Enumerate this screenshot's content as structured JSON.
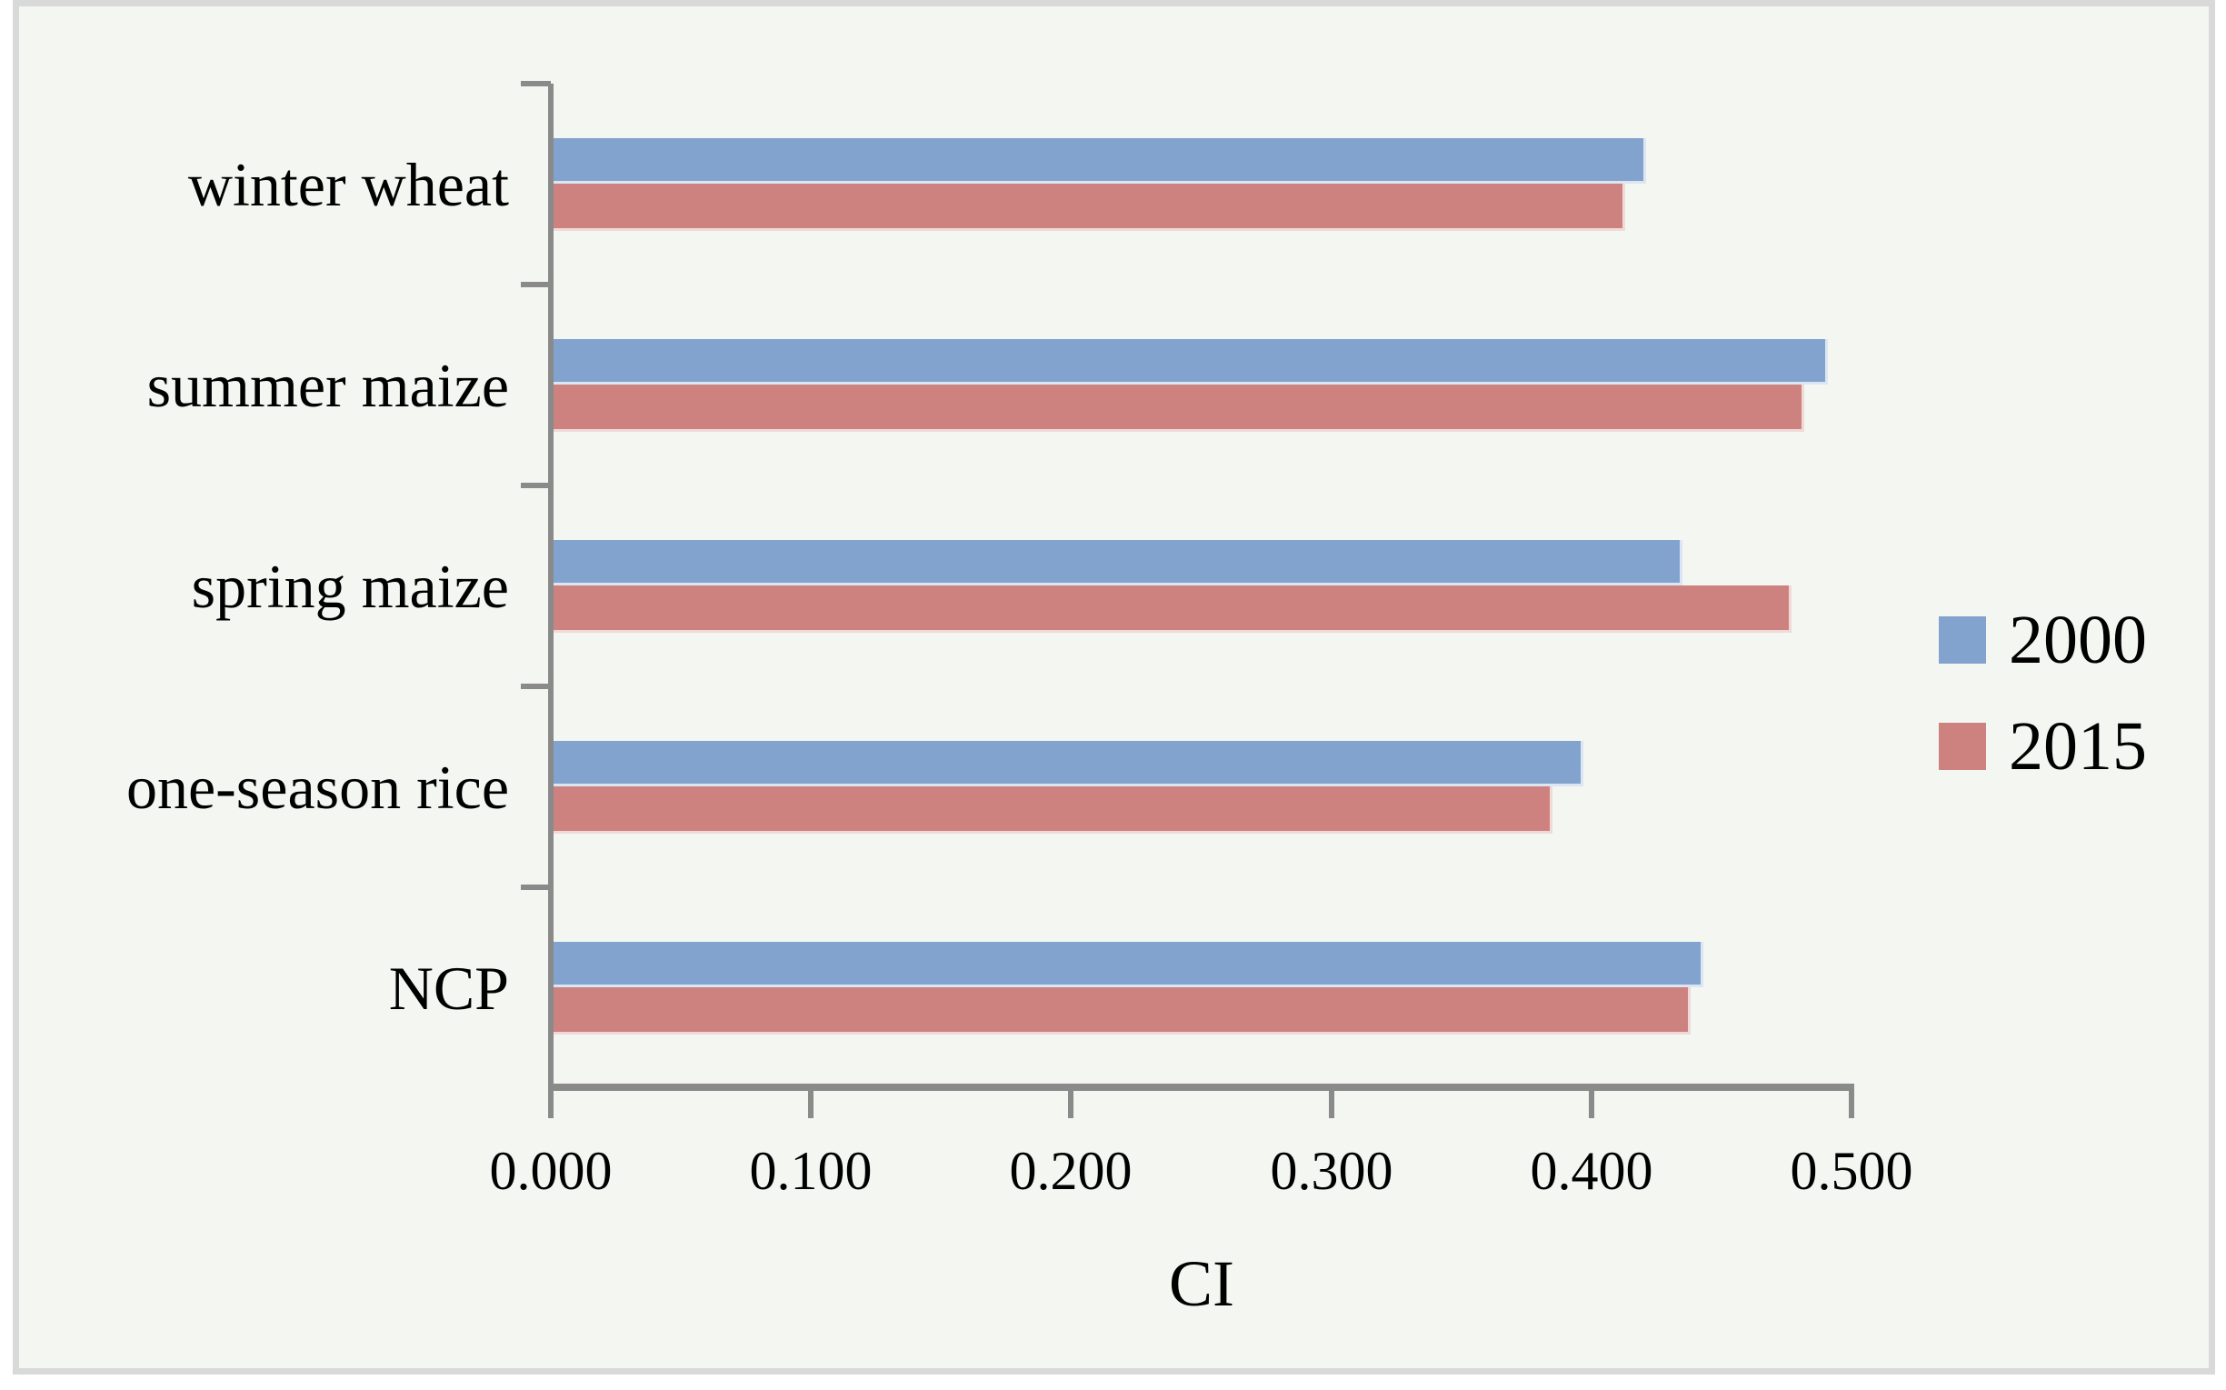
{
  "chart_data": {
    "type": "bar",
    "orientation": "horizontal",
    "title": "",
    "xlabel": "CI",
    "categories": [
      "winter wheat",
      "summer maize",
      "spring maize",
      "one-season rice",
      "NCP"
    ],
    "series": [
      {
        "name": "2000",
        "color": "#82A3CD",
        "edge_color": "#DCE6F2",
        "values": [
          0.421,
          0.491,
          0.435,
          0.397,
          0.443
        ]
      },
      {
        "name": "2015",
        "color": "#CD8280",
        "edge_color": "#F0DAD8",
        "values": [
          0.413,
          0.482,
          0.477,
          0.385,
          0.438
        ]
      }
    ],
    "x_ticks": [
      "0.000",
      "0.100",
      "0.200",
      "0.300",
      "0.400",
      "0.500"
    ],
    "xlim": [
      0,
      0.5
    ],
    "legend_position": "right",
    "grid": false
  },
  "colors": {
    "plot_background": "#F4F6F1",
    "frame_border": "#D9D9D9",
    "axis": "#8A8A8A",
    "text": "#000000"
  }
}
